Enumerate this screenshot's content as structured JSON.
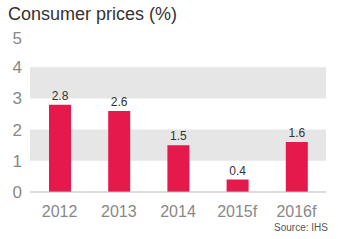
{
  "chart_data": {
    "type": "bar",
    "title": "Consumer prices (%)",
    "source": "Source: IHS",
    "categories": [
      "2012",
      "2013",
      "2014",
      "2015f",
      "2016f"
    ],
    "values": [
      2.8,
      2.6,
      1.5,
      0.4,
      1.6
    ],
    "color": "#e5194b",
    "ylim": [
      0,
      5
    ],
    "yticks": [
      0,
      1,
      2,
      3,
      4,
      5
    ],
    "grid": true,
    "data_labels": true
  }
}
